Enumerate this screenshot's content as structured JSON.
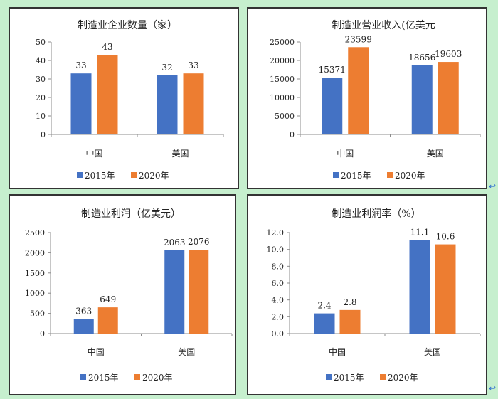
{
  "colors": {
    "series_2015": "#4472c4",
    "series_2020": "#ed7d31",
    "axis": "#8c8c8c",
    "text": "#222222"
  },
  "chart_data": [
    {
      "type": "bar",
      "title": "制造业企业数量（家）",
      "categories": [
        "中国",
        "美国"
      ],
      "series": [
        {
          "name": "2015年",
          "values": [
            33,
            32
          ],
          "labels": [
            "33",
            "32"
          ]
        },
        {
          "name": "2020年",
          "values": [
            43,
            33
          ],
          "labels": [
            "43",
            "33"
          ]
        }
      ],
      "ylim": [
        0,
        50
      ],
      "yticks": [
        "0",
        "10",
        "20",
        "30",
        "40",
        "50"
      ],
      "grid": false,
      "legend": "bottom"
    },
    {
      "type": "bar",
      "title": "制造业营业收入(亿美元",
      "categories": [
        "中国",
        "美国"
      ],
      "series": [
        {
          "name": "2015年",
          "values": [
            15371,
            18656
          ],
          "labels": [
            "15371",
            "18656"
          ]
        },
        {
          "name": "2020年",
          "values": [
            23599,
            19603
          ],
          "labels": [
            "23599",
            "19603"
          ]
        }
      ],
      "ylim": [
        0,
        25000
      ],
      "yticks": [
        "0",
        "5000",
        "10000",
        "15000",
        "20000",
        "25000"
      ],
      "grid": false,
      "legend": "bottom"
    },
    {
      "type": "bar",
      "title": "制造业利润（亿美元）",
      "categories": [
        "中国",
        "美国"
      ],
      "series": [
        {
          "name": "2015年",
          "values": [
            363,
            2063
          ],
          "labels": [
            "363",
            "2063"
          ]
        },
        {
          "name": "2020年",
          "values": [
            649,
            2076
          ],
          "labels": [
            "649",
            "2076"
          ]
        }
      ],
      "ylim": [
        0,
        2500
      ],
      "yticks": [
        "0",
        "500",
        "1000",
        "1500",
        "2000",
        "2500"
      ],
      "grid": false,
      "legend": "bottom"
    },
    {
      "type": "bar",
      "title": "制造业利润率（%）",
      "categories": [
        "中国",
        "美国"
      ],
      "series": [
        {
          "name": "2015年",
          "values": [
            2.4,
            11.1
          ],
          "labels": [
            "2.4",
            "11.1"
          ]
        },
        {
          "name": "2020年",
          "values": [
            2.8,
            10.6
          ],
          "labels": [
            "2.8",
            "10.6"
          ]
        }
      ],
      "ylim": [
        0,
        12
      ],
      "yticks": [
        "0.0",
        "2.0",
        "4.0",
        "6.0",
        "8.0",
        "10.0",
        "12.0"
      ],
      "grid": false,
      "legend": "bottom"
    }
  ],
  "arrow_glyph": "↩"
}
